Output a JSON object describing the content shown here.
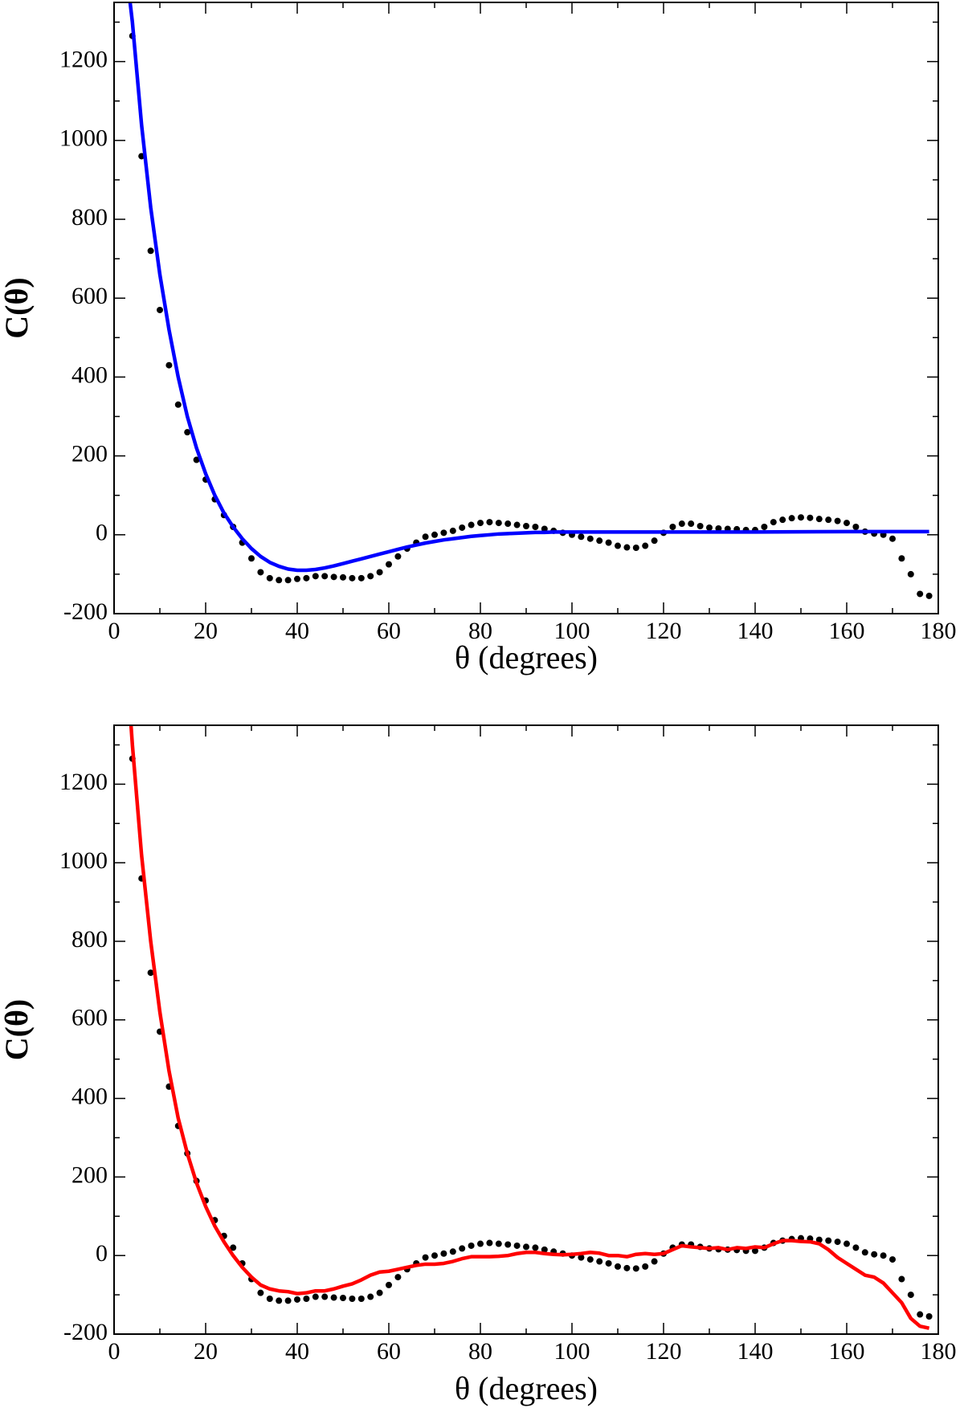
{
  "chart_data": [
    {
      "type": "scatter-line",
      "xlabel": "θ (degrees)",
      "ylabel": "C(θ)",
      "xlim": [
        0,
        180
      ],
      "xticks": [
        0,
        20,
        40,
        60,
        80,
        100,
        120,
        140,
        160,
        180
      ],
      "ylim": [
        -200,
        1350
      ],
      "yticks": [
        -200,
        0,
        200,
        400,
        600,
        800,
        1000,
        1200
      ],
      "series": [
        {
          "mode": "markers",
          "color": "#000000",
          "x": [
            4,
            6,
            8,
            10,
            12,
            14,
            16,
            18,
            20,
            22,
            24,
            26,
            28,
            30,
            32,
            34,
            36,
            38,
            40,
            42,
            44,
            46,
            48,
            50,
            52,
            54,
            56,
            58,
            60,
            62,
            64,
            66,
            68,
            70,
            72,
            74,
            76,
            78,
            80,
            82,
            84,
            86,
            88,
            90,
            92,
            94,
            96,
            98,
            100,
            102,
            104,
            106,
            108,
            110,
            112,
            114,
            116,
            118,
            120,
            122,
            124,
            126,
            128,
            130,
            132,
            134,
            136,
            138,
            140,
            142,
            144,
            146,
            148,
            150,
            152,
            154,
            156,
            158,
            160,
            162,
            164,
            166,
            168,
            170,
            172,
            174,
            176,
            178
          ],
          "values": [
            1265,
            960,
            720,
            570,
            430,
            330,
            260,
            190,
            140,
            90,
            50,
            20,
            -20,
            -60,
            -95,
            -110,
            -115,
            -115,
            -112,
            -110,
            -105,
            -105,
            -107,
            -108,
            -110,
            -110,
            -105,
            -95,
            -75,
            -55,
            -35,
            -20,
            -5,
            0,
            5,
            10,
            18,
            25,
            30,
            32,
            30,
            28,
            25,
            22,
            20,
            15,
            10,
            5,
            0,
            -5,
            -10,
            -15,
            -20,
            -28,
            -32,
            -33,
            -28,
            -15,
            5,
            20,
            28,
            28,
            22,
            18,
            16,
            15,
            14,
            12,
            12,
            20,
            32,
            38,
            42,
            44,
            43,
            40,
            38,
            35,
            30,
            20,
            8,
            3,
            0,
            -10,
            -60,
            -100,
            -150,
            -155
          ]
        },
        {
          "mode": "line",
          "color": "#0000ff",
          "x": [
            3.5,
            4,
            6,
            8,
            10,
            12,
            14,
            16,
            18,
            20,
            22,
            24,
            26,
            28,
            30,
            32,
            34,
            36,
            38,
            40,
            42,
            44,
            46,
            48,
            50,
            52,
            54,
            56,
            58,
            60,
            62,
            64,
            66,
            68,
            70,
            72,
            74,
            76,
            78,
            80,
            82,
            84,
            86,
            88,
            90,
            92,
            94,
            96,
            98,
            120,
            140,
            160,
            178
          ],
          "values": [
            1350,
            1300,
            1040,
            830,
            660,
            520,
            400,
            300,
            220,
            155,
            100,
            55,
            20,
            -10,
            -35,
            -55,
            -70,
            -80,
            -87,
            -90,
            -90,
            -88,
            -84,
            -79,
            -73,
            -67,
            -61,
            -55,
            -49,
            -43,
            -37,
            -31,
            -26,
            -21,
            -17,
            -13,
            -10,
            -7,
            -4,
            -2,
            0,
            2,
            3,
            4,
            5,
            6,
            6,
            7,
            7,
            7,
            7,
            8,
            8
          ]
        }
      ]
    },
    {
      "type": "scatter-line",
      "xlabel": "θ (degrees)",
      "ylabel": "C(θ)",
      "xlim": [
        0,
        180
      ],
      "xticks": [
        0,
        20,
        40,
        60,
        80,
        100,
        120,
        140,
        160,
        180
      ],
      "ylim": [
        -200,
        1350
      ],
      "yticks": [
        -200,
        0,
        200,
        400,
        600,
        800,
        1000,
        1200
      ],
      "series": [
        {
          "mode": "markers",
          "color": "#000000",
          "x": [
            4,
            6,
            8,
            10,
            12,
            14,
            16,
            18,
            20,
            22,
            24,
            26,
            28,
            30,
            32,
            34,
            36,
            38,
            40,
            42,
            44,
            46,
            48,
            50,
            52,
            54,
            56,
            58,
            60,
            62,
            64,
            66,
            68,
            70,
            72,
            74,
            76,
            78,
            80,
            82,
            84,
            86,
            88,
            90,
            92,
            94,
            96,
            98,
            100,
            102,
            104,
            106,
            108,
            110,
            112,
            114,
            116,
            118,
            120,
            122,
            124,
            126,
            128,
            130,
            132,
            134,
            136,
            138,
            140,
            142,
            144,
            146,
            148,
            150,
            152,
            154,
            156,
            158,
            160,
            162,
            164,
            166,
            168,
            170,
            172,
            174,
            176,
            178
          ],
          "values": [
            1265,
            960,
            720,
            570,
            430,
            330,
            260,
            190,
            140,
            90,
            50,
            20,
            -20,
            -60,
            -95,
            -110,
            -115,
            -115,
            -112,
            -110,
            -105,
            -105,
            -107,
            -108,
            -110,
            -110,
            -105,
            -95,
            -75,
            -55,
            -35,
            -20,
            -5,
            0,
            5,
            10,
            18,
            25,
            30,
            32,
            30,
            28,
            25,
            22,
            20,
            15,
            10,
            5,
            0,
            -5,
            -10,
            -15,
            -20,
            -28,
            -32,
            -33,
            -28,
            -15,
            5,
            20,
            28,
            28,
            22,
            18,
            16,
            15,
            14,
            12,
            12,
            20,
            32,
            38,
            42,
            44,
            43,
            40,
            38,
            35,
            30,
            20,
            8,
            3,
            0,
            -10,
            -60,
            -100,
            -150,
            -155
          ]
        },
        {
          "mode": "line",
          "color": "#ff0000",
          "x": [
            3.7,
            4,
            6,
            8,
            10,
            12,
            14,
            16,
            18,
            20,
            22,
            24,
            26,
            28,
            30,
            32,
            34,
            36,
            38,
            40,
            42,
            44,
            46,
            48,
            50,
            52,
            54,
            56,
            58,
            60,
            62,
            64,
            66,
            68,
            70,
            72,
            74,
            76,
            78,
            80,
            82,
            84,
            86,
            88,
            90,
            92,
            94,
            96,
            98,
            100,
            102,
            104,
            106,
            108,
            110,
            112,
            114,
            116,
            118,
            120,
            122,
            124,
            126,
            128,
            130,
            132,
            134,
            136,
            138,
            140,
            142,
            144,
            146,
            148,
            150,
            152,
            154,
            156,
            158,
            160,
            162,
            164,
            166,
            168,
            170,
            172,
            174,
            176,
            178
          ],
          "values": [
            1350,
            1300,
            1020,
            800,
            620,
            470,
            350,
            260,
            185,
            125,
            75,
            35,
            0,
            -30,
            -55,
            -75,
            -85,
            -90,
            -92,
            -97,
            -95,
            -90,
            -90,
            -85,
            -78,
            -72,
            -62,
            -50,
            -42,
            -40,
            -35,
            -30,
            -25,
            -22,
            -22,
            -20,
            -15,
            -8,
            -3,
            -3,
            -3,
            -2,
            0,
            5,
            8,
            8,
            5,
            3,
            2,
            3,
            5,
            8,
            6,
            0,
            0,
            -3,
            3,
            5,
            3,
            5,
            15,
            25,
            22,
            20,
            18,
            20,
            15,
            20,
            18,
            22,
            20,
            30,
            38,
            38,
            36,
            35,
            30,
            15,
            -5,
            -20,
            -35,
            -50,
            -55,
            -70,
            -95,
            -120,
            -160,
            -180,
            -185
          ]
        }
      ]
    }
  ]
}
